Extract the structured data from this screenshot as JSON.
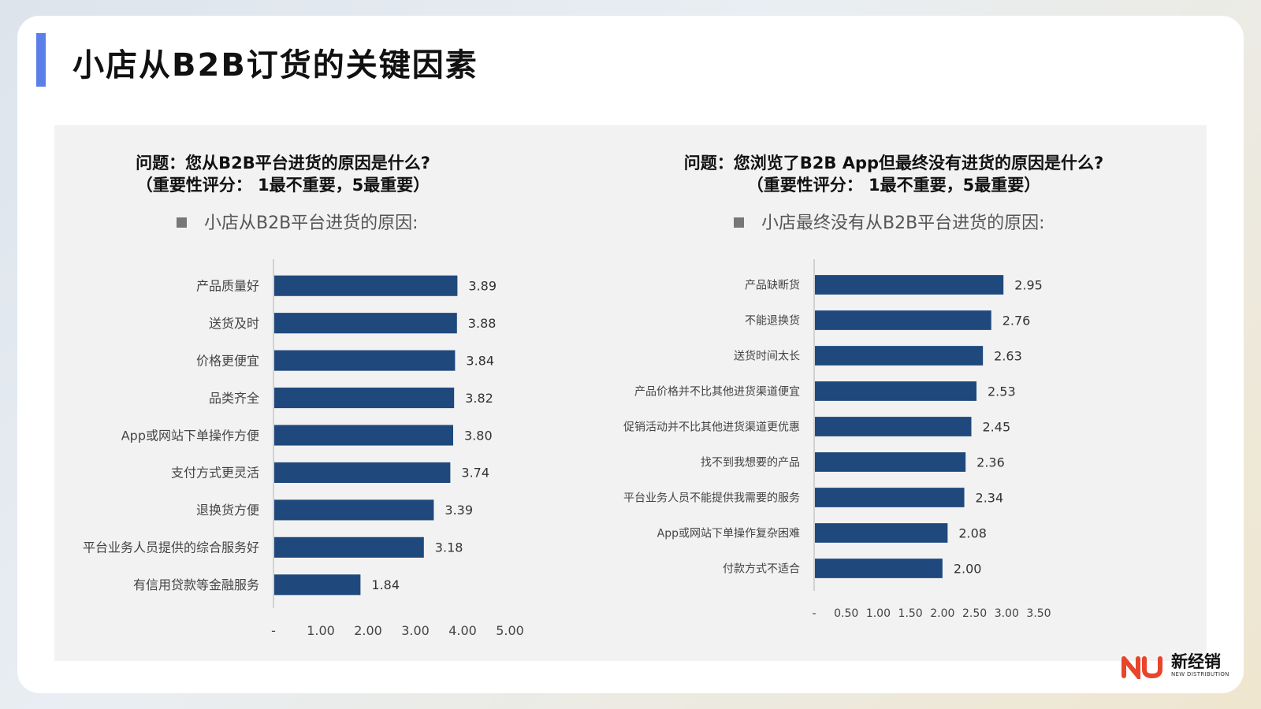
{
  "page": {
    "title": "小店从B2B订货的关键因素"
  },
  "chart_data": [
    {
      "type": "bar",
      "orientation": "horizontal",
      "question": "问题：您从B2B平台进货的原因是什么?",
      "scale_note": "（重要性评分：  1最不重要，5最重要）",
      "legend": "小店从B2B平台进货的原因:",
      "categories": [
        "产品质量好",
        "送货及时",
        "价格更便宜",
        "品类齐全",
        "App或网站下单操作方便",
        "支付方式更灵活",
        "退换货方便",
        "平台业务人员提供的综合服务好",
        "有信用贷款等金融服务"
      ],
      "values": [
        3.89,
        3.88,
        3.84,
        3.82,
        3.8,
        3.74,
        3.39,
        3.18,
        1.84
      ],
      "value_labels": [
        "3.89",
        "3.88",
        "3.84",
        "3.82",
        "3.80",
        "3.74",
        "3.39",
        "3.18",
        "1.84"
      ],
      "xlim": [
        0,
        5
      ],
      "x_ticks": [
        0,
        1,
        2,
        3,
        4,
        5
      ],
      "x_tick_labels": [
        "-",
        "1.00",
        "2.00",
        "3.00",
        "4.00",
        "5.00"
      ],
      "bar_color": "#1f497d",
      "grid": false
    },
    {
      "type": "bar",
      "orientation": "horizontal",
      "question": "问题：您浏览了B2B App但最终没有进货的原因是什么?",
      "scale_note": "（重要性评分：  1最不重要，5最重要）",
      "legend": "小店最终没有从B2B平台进货的原因:",
      "categories": [
        "产品缺断货",
        "不能退换货",
        "送货时间太长",
        "产品价格并不比其他进货渠道便宜",
        "促销活动并不比其他进货渠道更优惠",
        "找不到我想要的产品",
        "平台业务人员不能提供我需要的服务",
        "App或网站下单操作复杂困难",
        "付款方式不适合"
      ],
      "values": [
        2.95,
        2.76,
        2.63,
        2.53,
        2.45,
        2.36,
        2.34,
        2.08,
        2.0
      ],
      "value_labels": [
        "2.95",
        "2.76",
        "2.63",
        "2.53",
        "2.45",
        "2.36",
        "2.34",
        "2.08",
        "2.00"
      ],
      "xlim": [
        0,
        3.5
      ],
      "x_ticks": [
        0,
        0.5,
        1,
        1.5,
        2,
        2.5,
        3,
        3.5
      ],
      "x_tick_labels": [
        "-",
        "0.50",
        "1.00",
        "1.50",
        "2.00",
        "2.50",
        "3.00",
        "3.50"
      ],
      "bar_color": "#1f497d",
      "grid": false
    }
  ],
  "logo": {
    "text": "新经销",
    "subtitle": "NEW DISTRIBUTION",
    "mark_color": "#e8452c"
  }
}
